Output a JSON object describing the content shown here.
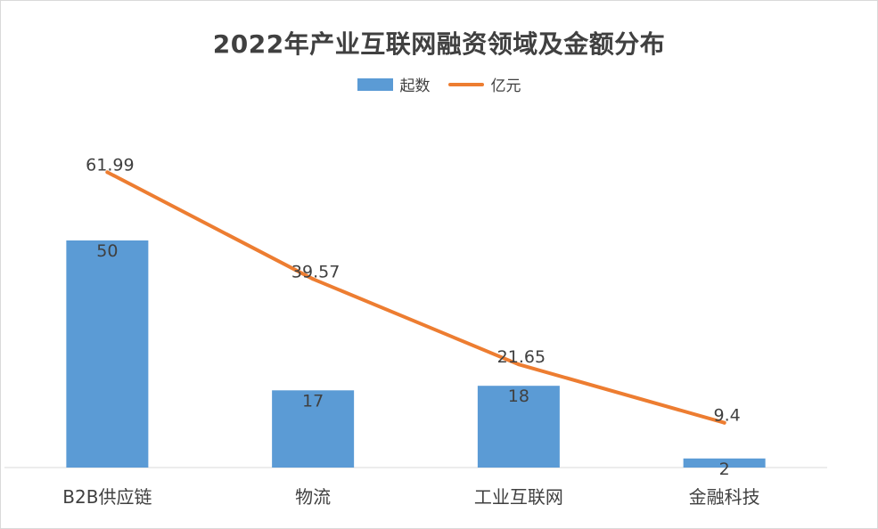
{
  "chart_data": {
    "type": "bar",
    "title": "2022年产业互联网融资领域及金额分布",
    "categories": [
      "B2B供应链",
      "物流",
      "工业互联网",
      "金融科技"
    ],
    "series": [
      {
        "name": "起数",
        "type": "bar",
        "values": [
          50,
          17,
          18,
          2
        ],
        "color": "#5b9bd5"
      },
      {
        "name": "亿元",
        "type": "line",
        "values": [
          61.99,
          39.57,
          21.65,
          9.4
        ],
        "color": "#ed7d31"
      }
    ],
    "value_labels": {
      "bar": [
        "50",
        "17",
        "18",
        "2"
      ],
      "line": [
        "61.99",
        "39.57",
        "21.65",
        "9.4"
      ]
    },
    "legend": "top-center",
    "grid": false
  }
}
